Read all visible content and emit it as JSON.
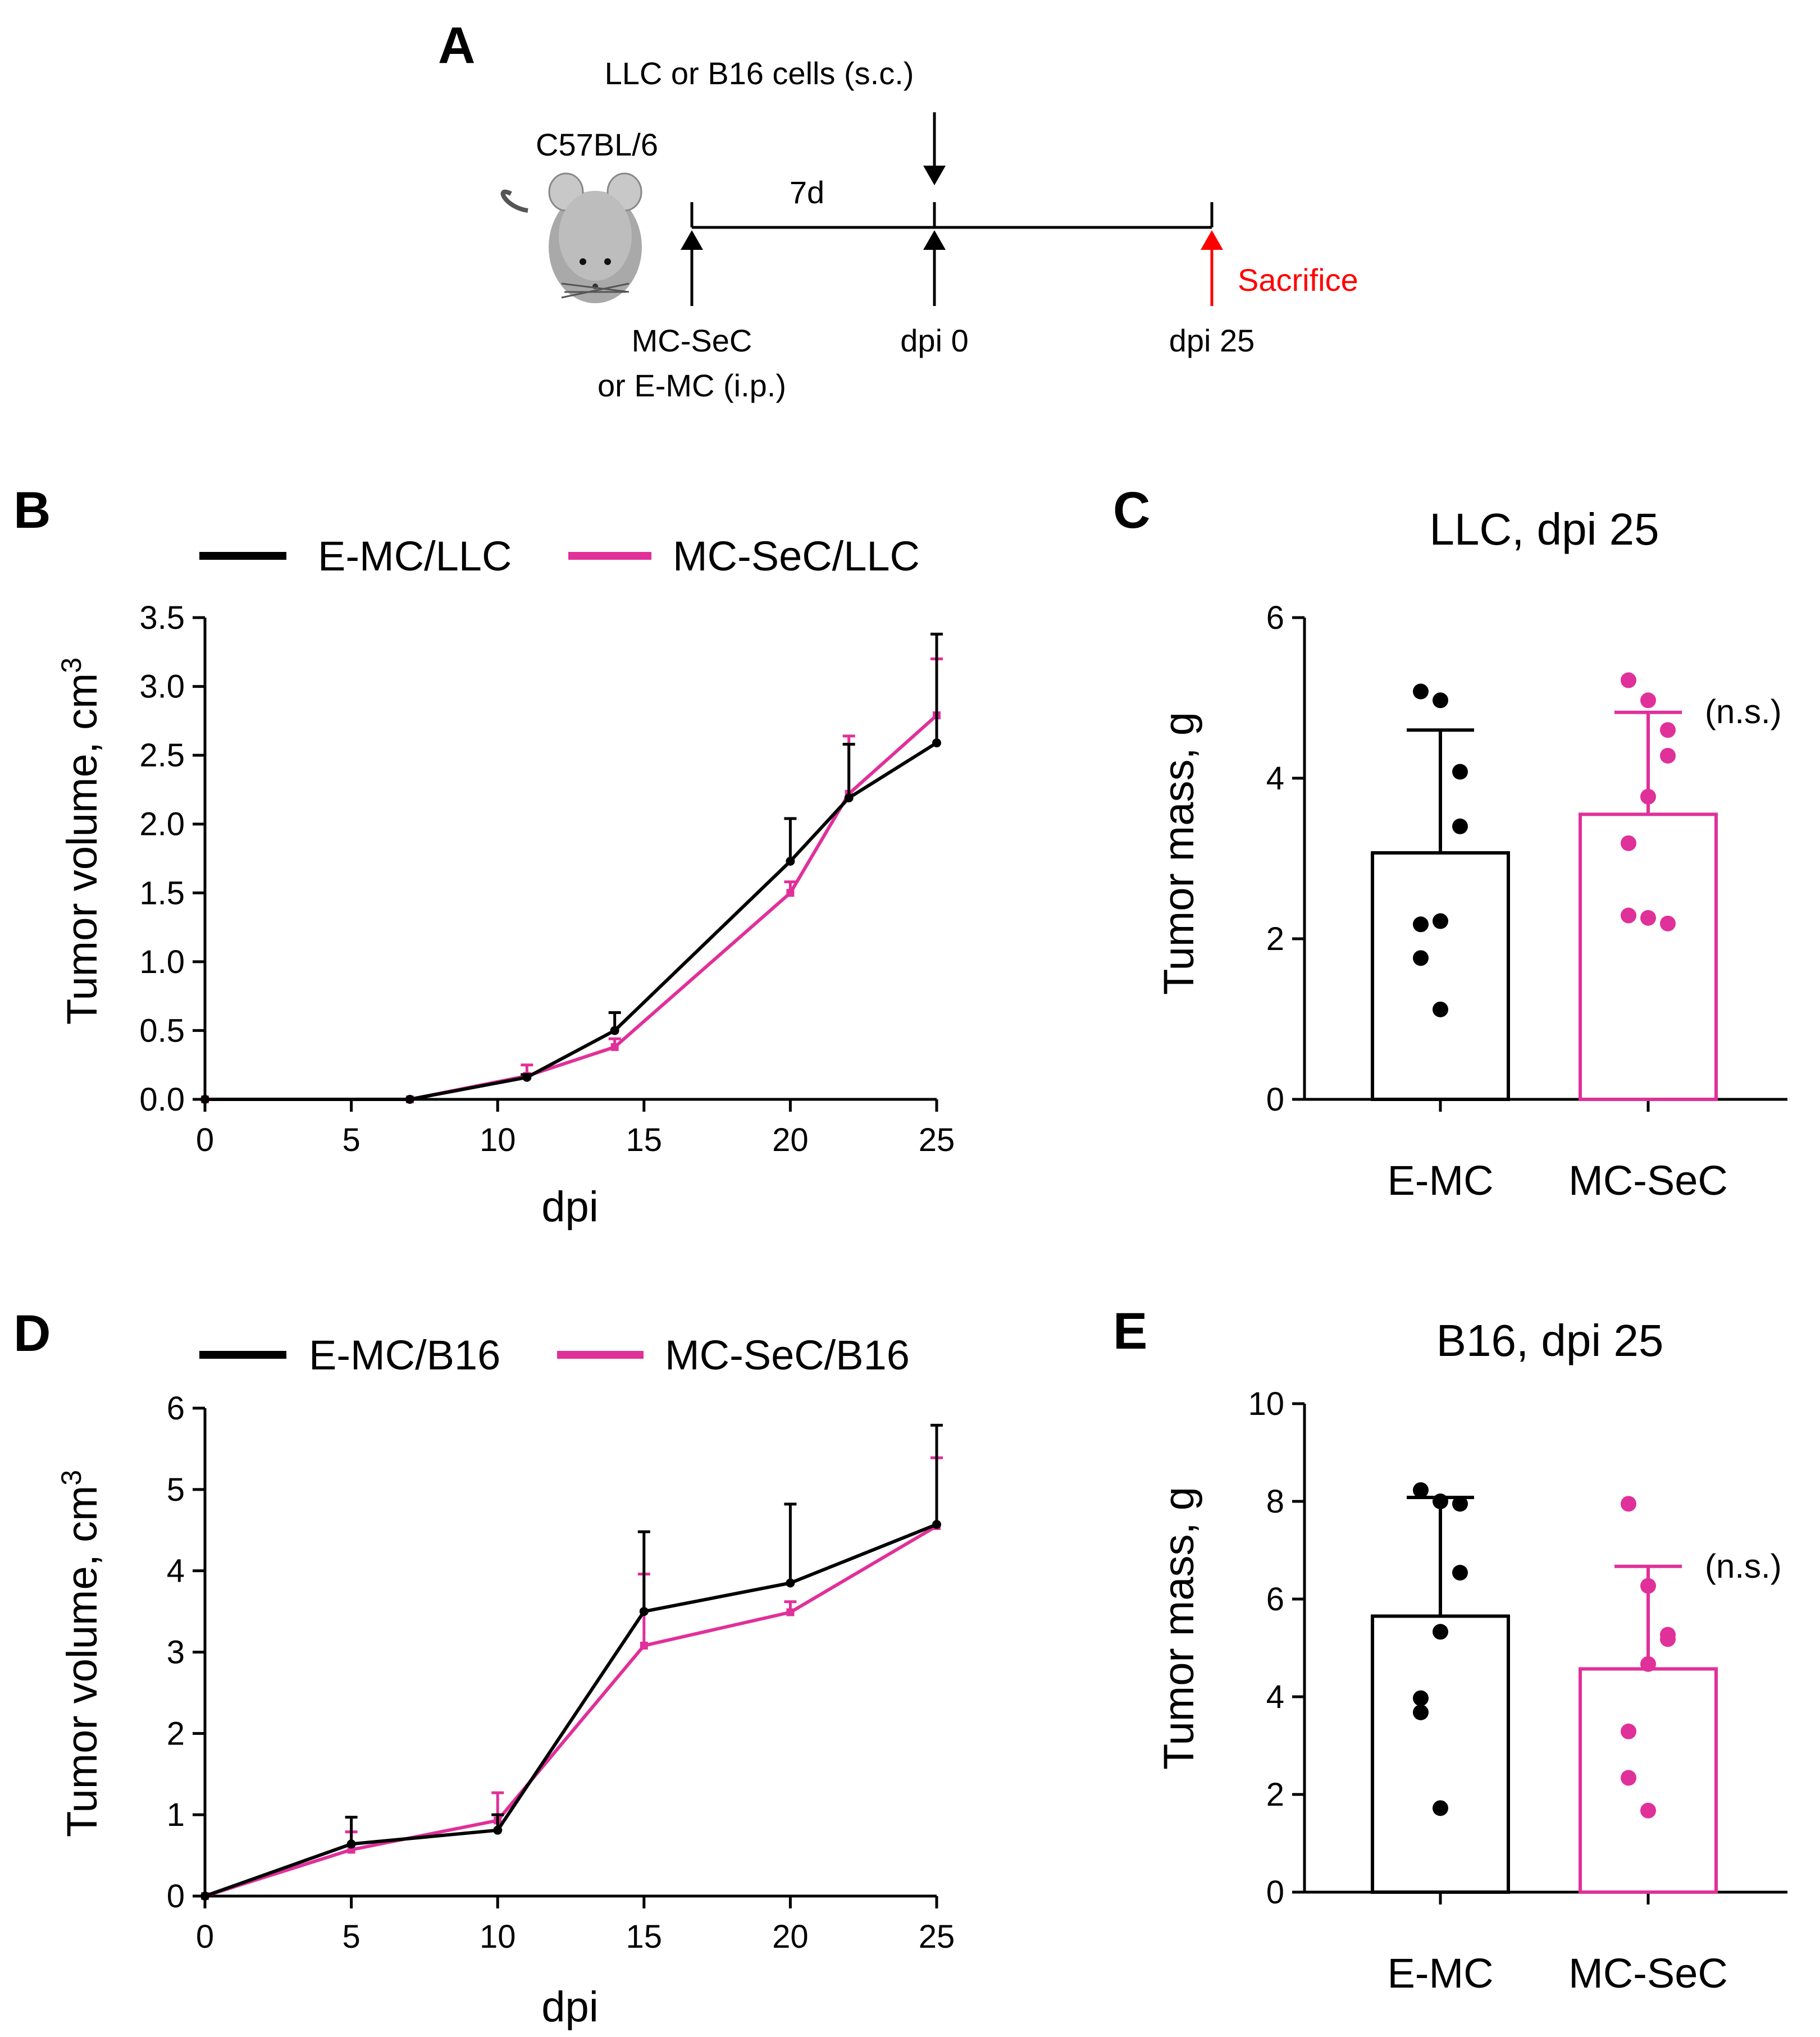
{
  "colors": {
    "black": "#000000",
    "magenta": "#e0309a",
    "red": "#ff0000",
    "mouse_gray": "#a9a9a9"
  },
  "schema": {
    "letter": "A",
    "mouse_label": "C57BL/6",
    "injection_label": "LLC or B16 cells (s.c.)",
    "interval_label": "7d",
    "pretreat_line1": "MC-SeC",
    "pretreat_line2": "or E-MC (i.p.)",
    "dpi0_label": "dpi 0",
    "dpi25_label": "dpi 25",
    "sacrifice_label": "Sacrifice",
    "mouse_icon": "mouse-icon"
  },
  "chart_data": [
    {
      "panel": "B",
      "type": "line",
      "title": "",
      "xlabel": "dpi",
      "ylabel": "Tumor volume, cm",
      "ylabel_sup": "3",
      "xlim": [
        0,
        25
      ],
      "ylim": [
        0,
        3.5
      ],
      "xticks": [
        0,
        5,
        10,
        15,
        20,
        25
      ],
      "yticks": [
        "0.0",
        "0.5",
        "1.0",
        "1.5",
        "2.0",
        "2.5",
        "3.0",
        "3.5"
      ],
      "legend_position": "top",
      "series": [
        {
          "name": "E-MC/LLC",
          "color": "#000000",
          "x": [
            0,
            7,
            11,
            14,
            20,
            22,
            25
          ],
          "y": [
            0,
            0,
            0.16,
            0.5,
            1.73,
            2.19,
            2.59
          ],
          "err": [
            0,
            0,
            0.02,
            0.13,
            0.31,
            0.39,
            0.79
          ]
        },
        {
          "name": "MC-SeC/LLC",
          "color": "#e0309a",
          "x": [
            0,
            7,
            11,
            14,
            20,
            22,
            25
          ],
          "y": [
            0,
            0,
            0.17,
            0.38,
            1.5,
            2.22,
            2.79
          ],
          "err": [
            0,
            0,
            0.08,
            0.06,
            0.08,
            0.42,
            0.41
          ]
        }
      ]
    },
    {
      "panel": "C",
      "type": "bar",
      "title": "LLC, dpi 25",
      "xlabel": "",
      "ylabel": "Tumor mass, g",
      "ylim": [
        0,
        6
      ],
      "yticks": [
        "0",
        "2",
        "4",
        "6"
      ],
      "categories": [
        "E-MC",
        "MC-SeC"
      ],
      "colors": [
        "#000000",
        "#e0309a"
      ],
      "values": [
        3.07,
        3.55
      ],
      "errors": [
        1.53,
        1.27
      ],
      "points": [
        [
          5.08,
          4.97,
          4.08,
          3.4,
          2.22,
          2.18,
          1.76,
          1.12
        ],
        [
          5.22,
          4.97,
          4.6,
          4.28,
          3.77,
          3.19,
          2.29,
          2.26,
          2.19
        ]
      ],
      "annotation": "(n.s.)"
    },
    {
      "panel": "D",
      "type": "line",
      "title": "",
      "xlabel": "dpi",
      "ylabel": "Tumor volume, cm",
      "ylabel_sup": "3",
      "xlim": [
        0,
        25
      ],
      "ylim": [
        0,
        6
      ],
      "xticks": [
        0,
        5,
        10,
        15,
        20,
        25
      ],
      "yticks": [
        "0",
        "1",
        "2",
        "3",
        "4",
        "5",
        "6"
      ],
      "legend_position": "top",
      "series": [
        {
          "name": "E-MC/B16",
          "color": "#000000",
          "x": [
            0,
            5,
            10,
            15,
            20,
            25
          ],
          "y": [
            0,
            0.64,
            0.81,
            3.5,
            3.85,
            4.57
          ],
          "err": [
            0,
            0.33,
            0.19,
            0.98,
            0.97,
            1.22
          ]
        },
        {
          "name": "MC-SeC/B16",
          "color": "#e0309a",
          "x": [
            0,
            5,
            10,
            15,
            20,
            25
          ],
          "y": [
            0,
            0.57,
            0.93,
            3.08,
            3.49,
            4.55
          ],
          "err": [
            0,
            0.22,
            0.34,
            0.88,
            0.13,
            0.84
          ]
        }
      ]
    },
    {
      "panel": "E",
      "type": "bar",
      "title": "B16, dpi 25",
      "xlabel": "",
      "ylabel": "Tumor mass, g",
      "ylim": [
        0,
        10
      ],
      "yticks": [
        "0",
        "2",
        "4",
        "6",
        "8",
        "10"
      ],
      "categories": [
        "E-MC",
        "MC-SeC"
      ],
      "colors": [
        "#000000",
        "#e0309a"
      ],
      "values": [
        5.65,
        4.57
      ],
      "errors": [
        2.43,
        2.1
      ],
      "points": [
        [
          8.23,
          8.0,
          7.95,
          6.54,
          5.33,
          3.97,
          3.68,
          1.72
        ],
        [
          7.95,
          6.27,
          5.27,
          5.18,
          4.67,
          3.29,
          2.34,
          1.67
        ]
      ],
      "annotation": "(n.s.)"
    }
  ]
}
